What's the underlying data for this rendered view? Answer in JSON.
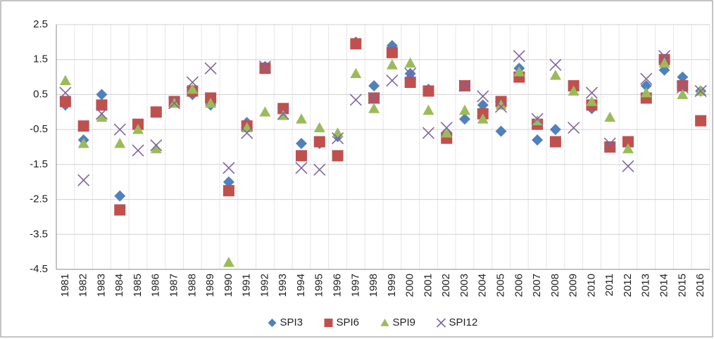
{
  "chart_data": {
    "type": "scatter",
    "categories": [
      "1981",
      "1982",
      "1983",
      "1984",
      "1985",
      "1986",
      "1987",
      "1988",
      "1989",
      "1990",
      "1991",
      "1992",
      "1993",
      "1994",
      "1995",
      "1996",
      "1997",
      "1998",
      "1999",
      "2000",
      "2001",
      "2002",
      "2003",
      "2004",
      "2005",
      "2006",
      "2007",
      "2008",
      "2009",
      "2010",
      "2011",
      "2012",
      "2013",
      "2014",
      "2015",
      "2016"
    ],
    "series": [
      {
        "name": "SPI3",
        "color": "#4f81bd",
        "marker": "diamond",
        "values": [
          0.2,
          -0.8,
          0.5,
          -2.4,
          -0.35,
          0.0,
          0.3,
          0.5,
          0.2,
          -2.0,
          -0.3,
          1.3,
          0.1,
          -0.9,
          -0.9,
          -0.7,
          2.0,
          0.75,
          1.9,
          1.1,
          0.65,
          -0.6,
          -0.2,
          0.2,
          -0.55,
          1.25,
          -0.8,
          -0.5,
          0.7,
          0.1,
          -1.0,
          -0.9,
          0.75,
          1.2,
          1.0,
          0.6
        ]
      },
      {
        "name": "SPI6",
        "color": "#c0504d",
        "marker": "square",
        "values": [
          0.3,
          -0.4,
          0.2,
          -2.8,
          -0.35,
          0.0,
          0.3,
          0.6,
          0.4,
          -2.25,
          -0.4,
          1.25,
          0.1,
          -1.25,
          -0.85,
          -1.25,
          1.95,
          0.4,
          1.7,
          0.85,
          0.6,
          -0.75,
          0.75,
          -0.05,
          0.3,
          1.0,
          -0.35,
          -0.85,
          0.75,
          0.2,
          -1.0,
          -0.85,
          0.4,
          1.5,
          0.75,
          -0.25
        ]
      },
      {
        "name": "SPI9",
        "color": "#9bbb59",
        "marker": "triangle",
        "values": [
          0.9,
          -0.9,
          -0.15,
          -0.9,
          -0.5,
          -1.05,
          0.25,
          0.65,
          0.25,
          -4.3,
          -0.45,
          0.0,
          -0.1,
          -0.2,
          -0.45,
          -0.6,
          1.1,
          0.1,
          1.35,
          1.4,
          0.05,
          -0.6,
          0.05,
          -0.2,
          0.2,
          1.15,
          -0.25,
          1.05,
          0.6,
          0.3,
          -0.15,
          -1.05,
          0.55,
          1.4,
          0.5,
          0.6
        ]
      },
      {
        "name": "SPI12",
        "color": "#8064a2",
        "marker": "x",
        "values": [
          0.55,
          -1.95,
          -0.05,
          -0.5,
          -1.1,
          -0.95,
          0.25,
          0.85,
          1.25,
          -1.6,
          -0.6,
          1.3,
          -0.05,
          -1.6,
          -1.65,
          -0.75,
          0.35,
          0.4,
          0.9,
          1.1,
          -0.6,
          -0.45,
          0.75,
          0.45,
          0.15,
          1.6,
          -0.2,
          1.35,
          -0.45,
          0.55,
          -0.9,
          -1.55,
          0.95,
          1.6,
          0.7,
          0.6
        ]
      }
    ],
    "ylim": [
      -4.5,
      2.5
    ],
    "yticks": [
      2.5,
      1.5,
      0.5,
      -0.5,
      -1.5,
      -2.5,
      -3.5,
      -4.5
    ],
    "grid": true,
    "legend": "bottom"
  }
}
